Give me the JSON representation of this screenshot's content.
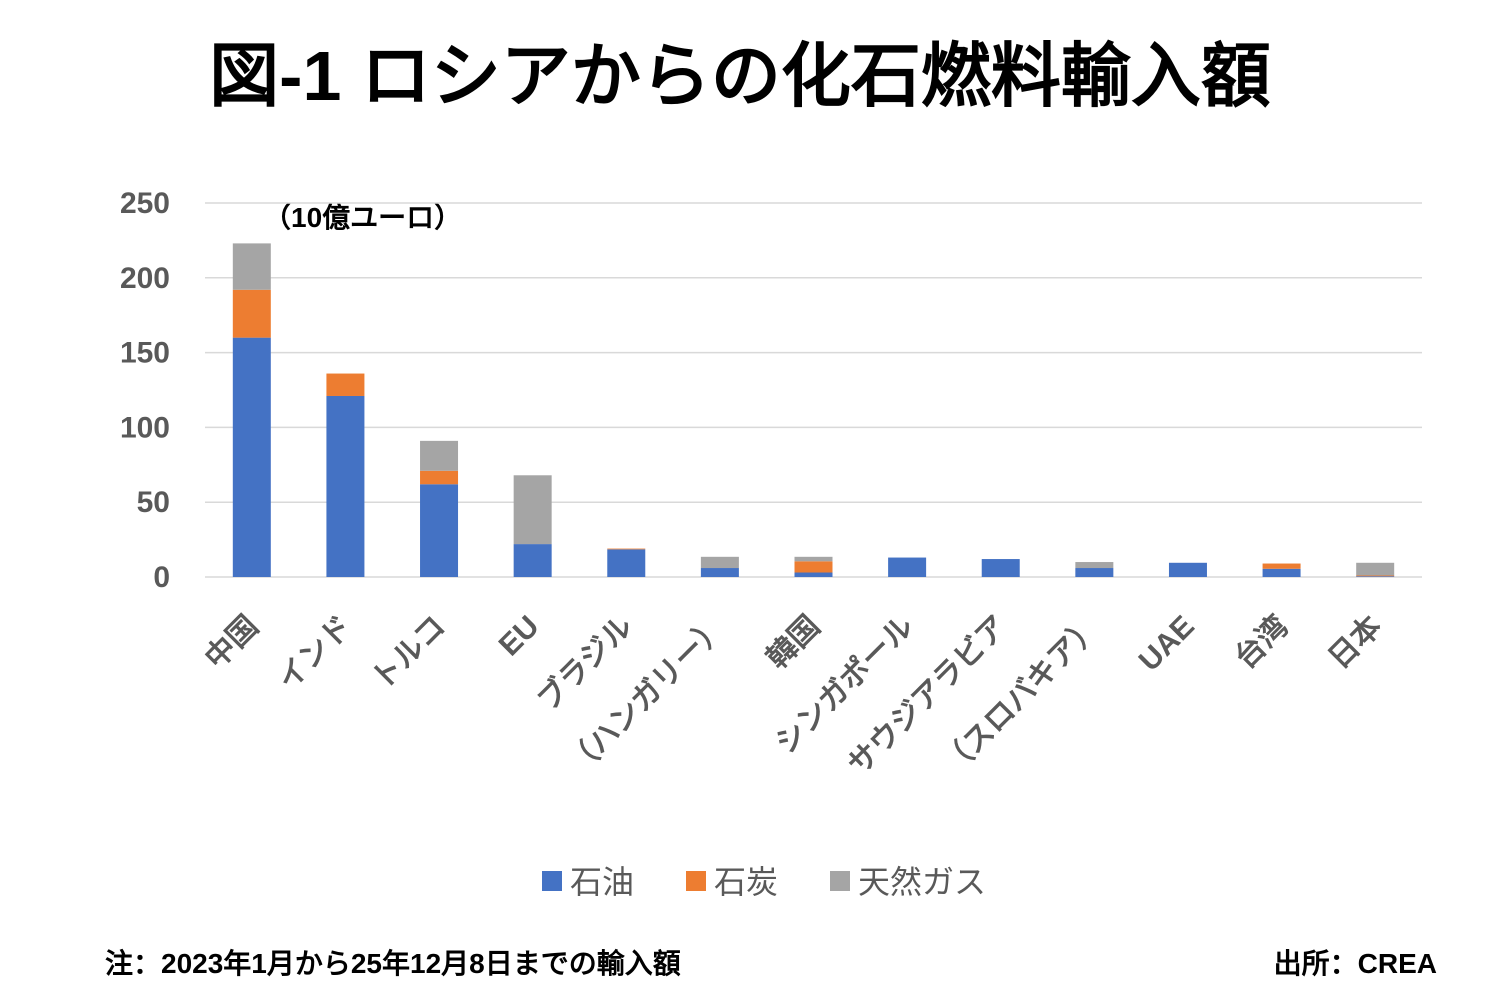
{
  "chart_data": {
    "type": "bar",
    "stacked": true,
    "title": "図-1 ロシアからの化石燃料輸入額",
    "ylabel": "（10億ユーロ）",
    "xlabel": "",
    "ylim": [
      0,
      250
    ],
    "yticks": [
      0,
      50,
      100,
      150,
      200,
      250
    ],
    "grid": true,
    "legend_position": "bottom",
    "categories": [
      "中国",
      "インド",
      "トルコ",
      "EU",
      "ブラジル",
      "（ハンガリー）",
      "韓国",
      "シンガポール",
      "サウジアラビア",
      "（スロバキア）",
      "UAE",
      "台湾",
      "日本"
    ],
    "series": [
      {
        "name": "石油",
        "color": "#4472c4",
        "values": [
          160,
          121,
          62,
          22,
          18.5,
          6,
          3,
          13,
          12,
          6,
          9.5,
          5.5,
          0.5
        ]
      },
      {
        "name": "石炭",
        "color": "#ed7d31",
        "values": [
          32,
          15,
          9,
          0,
          0.5,
          0,
          7.5,
          0,
          0,
          0,
          0,
          3.5,
          0.5
        ]
      },
      {
        "name": "天然ガス",
        "color": "#a5a5a5",
        "values": [
          31,
          0,
          20,
          46,
          0,
          7.5,
          3,
          0,
          0,
          4,
          0,
          0,
          8.5
        ]
      }
    ]
  },
  "footer": {
    "note": "注：2023年1月から25年12月8日までの輸入額",
    "source": "出所：CREA"
  }
}
